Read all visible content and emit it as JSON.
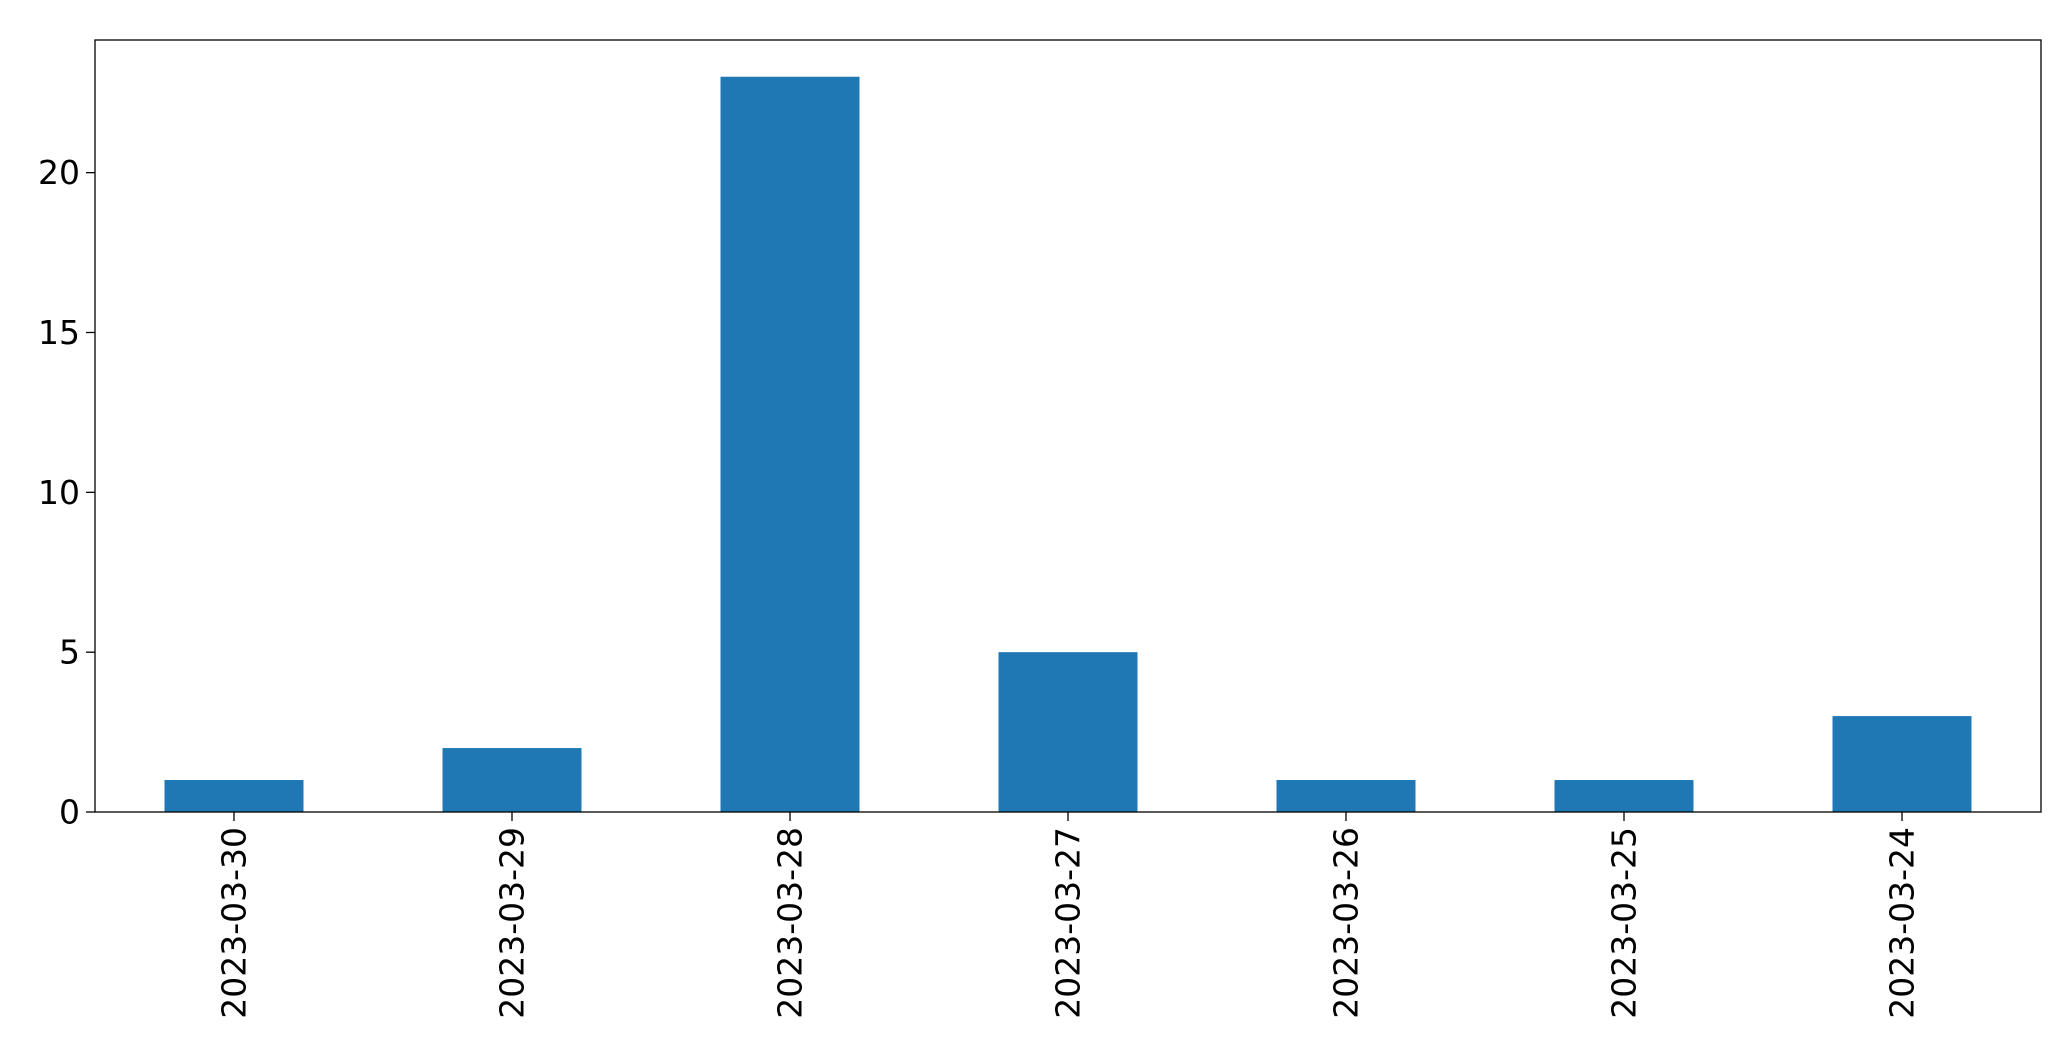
{
  "chart_data": {
    "type": "bar",
    "title": "",
    "xlabel": "",
    "ylabel": "",
    "categories": [
      "2023-03-30",
      "2023-03-29",
      "2023-03-28",
      "2023-03-27",
      "2023-03-26",
      "2023-03-25",
      "2023-03-24"
    ],
    "values": [
      1,
      2,
      23,
      5,
      1,
      1,
      3
    ],
    "ylim": [
      0,
      24.15
    ],
    "yticks": [
      0,
      5,
      10,
      15,
      20
    ],
    "grid": false,
    "legend": "none",
    "bar_color": "#1f77b4"
  }
}
